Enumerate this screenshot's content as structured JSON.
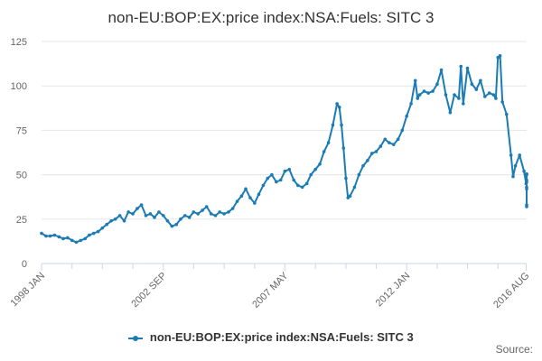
{
  "chart_data": {
    "type": "line",
    "title": "non-EU:BOP:EX:price index:NSA:Fuels: SITC 3",
    "xlabel": "",
    "ylabel": "",
    "ylim": [
      0,
      125
    ],
    "y_ticks": [
      0,
      25,
      50,
      75,
      100,
      125
    ],
    "x_range": [
      1998.0,
      2016.6
    ],
    "x_ticks": [
      {
        "label": "1998 JAN",
        "x": 1998.0
      },
      {
        "label": "2002 SEP",
        "x": 2002.67
      },
      {
        "label": "2007 MAY",
        "x": 2007.33
      },
      {
        "label": "2012 JAN",
        "x": 2012.0
      },
      {
        "label": "2016 AUG",
        "x": 2016.58
      }
    ],
    "minor_ticks": [
      1999.17,
      2000.33,
      2001.5,
      2003.83,
      2005.0,
      2006.17,
      2008.5,
      2009.67,
      2010.83,
      2013.17,
      2014.33,
      2015.5
    ],
    "grid": true,
    "legend": "bottom-center",
    "series": [
      {
        "name": "non-EU:BOP:EX:price index:NSA:Fuels: SITC 3",
        "color": "#1b7cb5",
        "points": [
          [
            1998.0,
            17
          ],
          [
            1998.17,
            15.5
          ],
          [
            1998.33,
            15.5
          ],
          [
            1998.5,
            16
          ],
          [
            1998.67,
            15
          ],
          [
            1998.83,
            14
          ],
          [
            1999.0,
            14.5
          ],
          [
            1999.17,
            13
          ],
          [
            1999.33,
            12
          ],
          [
            1999.5,
            13
          ],
          [
            1999.67,
            14
          ],
          [
            1999.83,
            16
          ],
          [
            2000.0,
            17
          ],
          [
            2000.17,
            18
          ],
          [
            2000.33,
            20
          ],
          [
            2000.5,
            22
          ],
          [
            2000.67,
            24
          ],
          [
            2000.83,
            25
          ],
          [
            2001.0,
            27
          ],
          [
            2001.17,
            24
          ],
          [
            2001.33,
            29
          ],
          [
            2001.5,
            28
          ],
          [
            2001.67,
            31
          ],
          [
            2001.83,
            33
          ],
          [
            2002.0,
            27
          ],
          [
            2002.17,
            28
          ],
          [
            2002.33,
            26
          ],
          [
            2002.5,
            29
          ],
          [
            2002.67,
            27
          ],
          [
            2002.83,
            24
          ],
          [
            2003.0,
            21
          ],
          [
            2003.17,
            22
          ],
          [
            2003.33,
            25
          ],
          [
            2003.5,
            27
          ],
          [
            2003.67,
            26
          ],
          [
            2003.83,
            29
          ],
          [
            2004.0,
            28
          ],
          [
            2004.17,
            30
          ],
          [
            2004.33,
            32
          ],
          [
            2004.5,
            28
          ],
          [
            2004.67,
            27
          ],
          [
            2004.83,
            29
          ],
          [
            2005.0,
            28
          ],
          [
            2005.17,
            29
          ],
          [
            2005.33,
            31
          ],
          [
            2005.5,
            35
          ],
          [
            2005.67,
            38
          ],
          [
            2005.83,
            42
          ],
          [
            2006.0,
            37
          ],
          [
            2006.17,
            34
          ],
          [
            2006.33,
            39
          ],
          [
            2006.5,
            44
          ],
          [
            2006.67,
            48
          ],
          [
            2006.83,
            50
          ],
          [
            2007.0,
            46
          ],
          [
            2007.17,
            47
          ],
          [
            2007.33,
            52
          ],
          [
            2007.5,
            53
          ],
          [
            2007.67,
            47
          ],
          [
            2007.83,
            44
          ],
          [
            2008.0,
            43
          ],
          [
            2008.17,
            45
          ],
          [
            2008.33,
            50
          ],
          [
            2008.5,
            53
          ],
          [
            2008.67,
            56
          ],
          [
            2008.83,
            63
          ],
          [
            2009.0,
            68
          ],
          [
            2009.17,
            78
          ],
          [
            2009.33,
            90
          ],
          [
            2009.42,
            88
          ],
          [
            2009.5,
            78
          ],
          [
            2009.58,
            65
          ],
          [
            2009.67,
            48
          ],
          [
            2009.75,
            37
          ],
          [
            2009.83,
            38
          ],
          [
            2010.0,
            43
          ],
          [
            2010.17,
            50
          ],
          [
            2010.33,
            55
          ],
          [
            2010.5,
            58
          ],
          [
            2010.67,
            62
          ],
          [
            2010.83,
            63
          ],
          [
            2011.0,
            66
          ],
          [
            2011.17,
            70
          ],
          [
            2011.33,
            68
          ],
          [
            2011.5,
            67
          ],
          [
            2011.67,
            70
          ],
          [
            2011.83,
            75
          ],
          [
            2012.0,
            83
          ],
          [
            2012.17,
            90
          ],
          [
            2012.33,
            103
          ],
          [
            2012.42,
            93
          ],
          [
            2012.5,
            95
          ],
          [
            2012.67,
            97
          ],
          [
            2012.83,
            96
          ],
          [
            2013.0,
            97
          ],
          [
            2013.17,
            101
          ],
          [
            2013.33,
            109
          ],
          [
            2013.5,
            95
          ],
          [
            2013.67,
            85
          ],
          [
            2013.83,
            95
          ],
          [
            2014.0,
            93
          ],
          [
            2014.08,
            111
          ],
          [
            2014.17,
            90
          ],
          [
            2014.33,
            110
          ],
          [
            2014.5,
            101
          ],
          [
            2014.67,
            98
          ],
          [
            2014.83,
            103
          ],
          [
            2015.0,
            94
          ],
          [
            2015.17,
            96
          ],
          [
            2015.33,
            95
          ],
          [
            2015.42,
            93
          ],
          [
            2015.5,
            116
          ],
          [
            2015.58,
            117
          ],
          [
            2015.67,
            91
          ],
          [
            2015.83,
            84
          ],
          [
            2016.0,
            61
          ],
          [
            2016.08,
            49
          ],
          [
            2016.17,
            55
          ],
          [
            2016.33,
            61
          ],
          [
            2016.5,
            52
          ],
          [
            2016.58,
            45
          ],
          [
            2016.75,
            46
          ],
          [
            2016.92,
            43
          ],
          [
            2017.0,
            32
          ],
          [
            2017.17,
            33
          ],
          [
            2017.33,
            42
          ],
          [
            2017.5,
            47
          ],
          [
            2017.67,
            50
          ],
          [
            2017.83,
            50.5
          ]
        ]
      }
    ],
    "source_note": "Source:"
  }
}
